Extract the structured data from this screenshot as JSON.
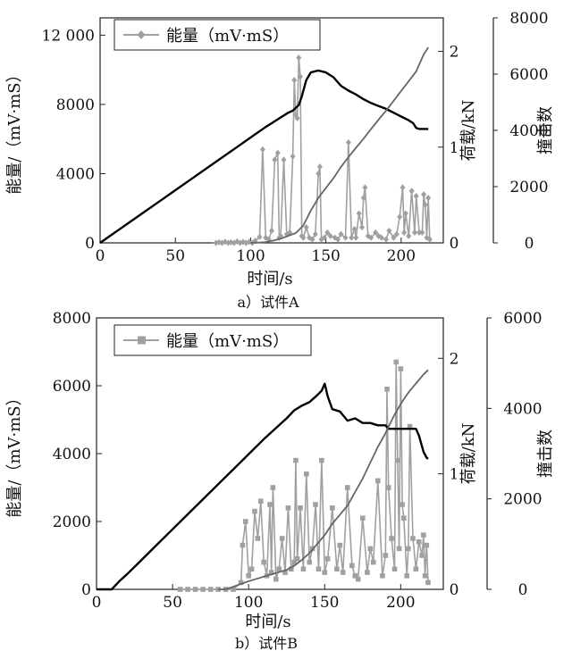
{
  "chart_data": [
    {
      "type": "line",
      "caption": "a）试件A",
      "xlabel": "时间/s",
      "ylabel_left": "能量/（mV·mS）",
      "ylabel_right1": "荷载/kN",
      "ylabel_right2": "撞击数",
      "xlim": [
        0,
        228
      ],
      "ylim_energy": [
        0,
        13000
      ],
      "ylim_load": [
        0,
        2.35
      ],
      "ylim_hits": [
        0,
        8000
      ],
      "x_ticks": [
        {
          "v": 0,
          "label": "0"
        },
        {
          "v": 50,
          "label": "50"
        },
        {
          "v": 100,
          "label": "100"
        },
        {
          "v": 150,
          "label": "150"
        },
        {
          "v": 200,
          "label": "200"
        }
      ],
      "energy_ticks": [
        {
          "v": 0,
          "label": "0"
        },
        {
          "v": 4000,
          "label": "4000"
        },
        {
          "v": 8000,
          "label": "8000"
        },
        {
          "v": 12000,
          "label": "12 000"
        }
      ],
      "load_ticks": [
        {
          "v": 0,
          "label": "0"
        },
        {
          "v": 1,
          "label": "1"
        },
        {
          "v": 2,
          "label": "2"
        }
      ],
      "hits_ticks": [
        {
          "v": 0,
          "label": "0"
        },
        {
          "v": 2000,
          "label": "2000"
        },
        {
          "v": 4000,
          "label": "4000"
        },
        {
          "v": 6000,
          "label": "6000"
        },
        {
          "v": 8000,
          "label": "8000"
        }
      ],
      "legend": {
        "label": "能量（mV·mS）",
        "marker": "diamond",
        "position": "top-left"
      },
      "series": [
        {
          "name": "能量（mV·mS）",
          "axis": "energy",
          "color": "#a0a0a0",
          "marker": "diamond",
          "x": [
            77,
            79,
            81,
            83,
            85,
            87,
            89,
            91,
            93,
            95,
            97,
            99,
            101,
            103,
            106,
            108,
            110,
            112,
            114,
            116,
            118,
            119,
            120,
            122,
            124,
            126,
            128,
            129,
            130,
            131,
            132,
            133,
            134,
            135,
            137,
            139,
            141,
            143,
            145,
            146,
            147,
            149,
            151,
            153,
            156,
            158,
            160,
            163,
            165,
            167,
            169,
            170,
            172,
            174,
            175,
            176,
            178,
            180,
            183,
            185,
            187,
            190,
            192,
            195,
            197,
            199,
            201,
            202,
            203,
            205,
            207,
            209,
            210,
            212,
            214,
            215,
            216,
            217,
            218,
            219
          ],
          "y": [
            0,
            40,
            0,
            60,
            0,
            30,
            0,
            80,
            0,
            50,
            0,
            60,
            0,
            120,
            350,
            5400,
            300,
            200,
            700,
            4800,
            5200,
            300,
            400,
            4800,
            500,
            600,
            5000,
            9400,
            7400,
            7200,
            10700,
            9600,
            400,
            300,
            900,
            300,
            200,
            500,
            4000,
            4400,
            200,
            300,
            600,
            400,
            300,
            200,
            500,
            300,
            5800,
            300,
            800,
            300,
            1700,
            900,
            2600,
            3200,
            400,
            300,
            600,
            400,
            300,
            200,
            700,
            300,
            500,
            1500,
            3200,
            600,
            1700,
            400,
            3000,
            600,
            2700,
            600,
            600,
            2800,
            2200,
            300,
            2600,
            200
          ]
        },
        {
          "name": "",
          "axis": "load",
          "color": "#000000",
          "x": [
            0,
            10,
            20,
            30,
            40,
            50,
            60,
            70,
            80,
            90,
            100,
            110,
            115,
            120,
            125,
            128,
            130,
            132,
            134,
            135,
            137,
            140,
            145,
            150,
            155,
            160,
            165,
            170,
            175,
            180,
            185,
            190,
            195,
            200,
            205,
            208,
            210,
            212,
            215,
            218
          ],
          "y": [
            0,
            0.11,
            0.22,
            0.33,
            0.44,
            0.55,
            0.66,
            0.77,
            0.88,
            0.99,
            1.1,
            1.21,
            1.26,
            1.31,
            1.36,
            1.38,
            1.41,
            1.44,
            1.53,
            1.59,
            1.7,
            1.78,
            1.8,
            1.78,
            1.73,
            1.64,
            1.59,
            1.55,
            1.5,
            1.46,
            1.43,
            1.4,
            1.36,
            1.32,
            1.28,
            1.25,
            1.2,
            1.19,
            1.19,
            1.19
          ]
        },
        {
          "name": "",
          "axis": "hits",
          "color": "#666666",
          "x": [
            100,
            105,
            110,
            115,
            120,
            125,
            130,
            135,
            140,
            145,
            150,
            155,
            160,
            165,
            170,
            175,
            180,
            185,
            190,
            195,
            200,
            205,
            210,
            215,
            218
          ],
          "y": [
            0,
            10,
            30,
            80,
            150,
            250,
            350,
            620,
            1150,
            1600,
            1950,
            2300,
            2700,
            3050,
            3380,
            3700,
            4050,
            4380,
            4700,
            5050,
            5400,
            5750,
            6100,
            6700,
            6950
          ]
        }
      ]
    },
    {
      "type": "line",
      "caption": "b）试件B",
      "xlabel": "时间/s",
      "ylabel_left": "能量/（mV·mS）",
      "ylabel_right1": "荷载/kN",
      "ylabel_right2": "撞击数",
      "xlim": [
        0,
        228
      ],
      "ylim_energy": [
        0,
        8000
      ],
      "ylim_load": [
        0,
        2.35
      ],
      "ylim_hits": [
        0,
        6000
      ],
      "x_ticks": [
        {
          "v": 0,
          "label": "0"
        },
        {
          "v": 50,
          "label": "50"
        },
        {
          "v": 100,
          "label": "100"
        },
        {
          "v": 150,
          "label": "150"
        },
        {
          "v": 200,
          "label": "200"
        }
      ],
      "energy_ticks": [
        {
          "v": 0,
          "label": "0"
        },
        {
          "v": 2000,
          "label": "2000"
        },
        {
          "v": 4000,
          "label": "4000"
        },
        {
          "v": 6000,
          "label": "6000"
        },
        {
          "v": 8000,
          "label": "8000"
        }
      ],
      "load_ticks": [
        {
          "v": 0,
          "label": "0"
        },
        {
          "v": 1,
          "label": "1"
        },
        {
          "v": 2,
          "label": "2"
        }
      ],
      "hits_ticks": [
        {
          "v": 0,
          "label": "0"
        },
        {
          "v": 2000,
          "label": "2000"
        },
        {
          "v": 4000,
          "label": "4000"
        },
        {
          "v": 6000,
          "label": "6000"
        }
      ],
      "legend": {
        "label": "能量（mV·mS）",
        "marker": "square",
        "position": "top-left"
      },
      "series": [
        {
          "name": "能量（mV·mS）",
          "axis": "energy",
          "color": "#a0a0a0",
          "marker": "square",
          "x": [
            55,
            60,
            65,
            70,
            75,
            80,
            85,
            90,
            95,
            96,
            98,
            100,
            102,
            104,
            106,
            108,
            110,
            112,
            114,
            115,
            116,
            118,
            120,
            122,
            124,
            126,
            128,
            130,
            131,
            132,
            134,
            136,
            138,
            140,
            142,
            144,
            146,
            148,
            150,
            152,
            155,
            158,
            160,
            162,
            165,
            168,
            170,
            172,
            175,
            178,
            180,
            182,
            185,
            188,
            190,
            191,
            192,
            194,
            196,
            197,
            198,
            199,
            200,
            201,
            202,
            204,
            205,
            206,
            208,
            210,
            212,
            214,
            215,
            216,
            217,
            218
          ],
          "y": [
            0,
            0,
            0,
            0,
            0,
            0,
            0,
            0,
            200,
            1300,
            2000,
            400,
            600,
            2300,
            1500,
            2600,
            800,
            400,
            2500,
            500,
            3000,
            300,
            600,
            1500,
            500,
            2400,
            600,
            800,
            3800,
            900,
            2400,
            600,
            3400,
            800,
            1200,
            2500,
            600,
            3800,
            500,
            900,
            2400,
            600,
            1300,
            500,
            3000,
            700,
            400,
            300,
            2100,
            500,
            1200,
            800,
            3200,
            400,
            1000,
            5900,
            3000,
            1500,
            600,
            6700,
            3800,
            1200,
            6500,
            2500,
            2100,
            400,
            1200,
            4800,
            1500,
            600,
            1400,
            1000,
            1600,
            400,
            1300,
            200
          ]
        },
        {
          "name": "",
          "axis": "load",
          "color": "#000000",
          "x": [
            0,
            10,
            15,
            20,
            30,
            40,
            50,
            60,
            70,
            80,
            90,
            100,
            110,
            120,
            125,
            130,
            135,
            140,
            145,
            148,
            150,
            152,
            155,
            160,
            165,
            170,
            175,
            180,
            185,
            190,
            192,
            195,
            200,
            205,
            210,
            212,
            215,
            217,
            218
          ],
          "y": [
            0,
            0,
            0.07,
            0.13,
            0.26,
            0.39,
            0.52,
            0.65,
            0.78,
            0.91,
            1.04,
            1.17,
            1.3,
            1.42,
            1.48,
            1.55,
            1.59,
            1.62,
            1.68,
            1.72,
            1.78,
            1.67,
            1.56,
            1.54,
            1.46,
            1.48,
            1.44,
            1.44,
            1.42,
            1.42,
            1.39,
            1.39,
            1.39,
            1.39,
            1.39,
            1.33,
            1.19,
            1.14,
            1.13
          ]
        },
        {
          "name": "",
          "axis": "hits",
          "color": "#666666",
          "x": [
            80,
            85,
            90,
            95,
            100,
            105,
            110,
            115,
            120,
            125,
            130,
            135,
            140,
            145,
            150,
            155,
            160,
            165,
            170,
            175,
            180,
            185,
            190,
            195,
            200,
            205,
            210,
            215,
            218
          ],
          "y": [
            0,
            0,
            60,
            120,
            180,
            230,
            280,
            330,
            380,
            430,
            520,
            650,
            800,
            1000,
            1200,
            1450,
            1650,
            1850,
            2150,
            2450,
            2800,
            3150,
            3450,
            3800,
            4100,
            4350,
            4550,
            4750,
            4850
          ]
        }
      ]
    }
  ]
}
